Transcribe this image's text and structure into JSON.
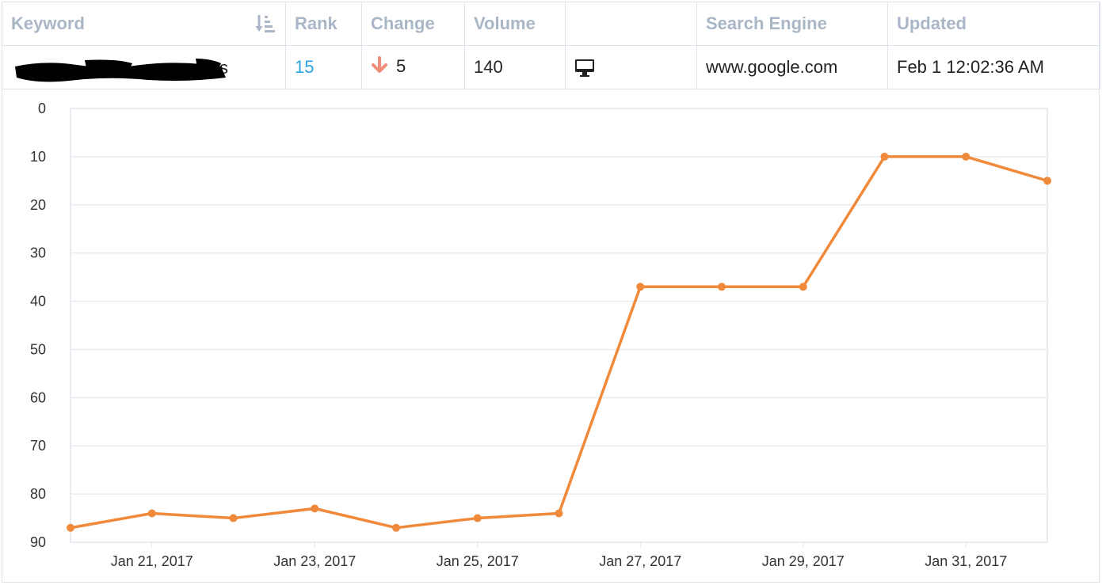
{
  "table": {
    "headers": {
      "keyword": "Keyword",
      "rank": "Rank",
      "change": "Change",
      "volume": "Volume",
      "device": "",
      "search_engine": "Search Engine",
      "updated": "Updated"
    },
    "row": {
      "keyword": "s",
      "rank": "15",
      "change": "5",
      "change_direction": "down",
      "volume": "140",
      "device_icon": "desktop-icon",
      "search_engine": "www.google.com",
      "updated": "Feb 1 12:02:36 AM"
    }
  },
  "colors": {
    "line": "#f0893a",
    "rank_link": "#2aa7e0",
    "change_down": "#f08c7a",
    "header_text": "#a9b6c6",
    "grid": "#e8ecf0"
  },
  "chart_data": {
    "type": "line",
    "title": "",
    "xlabel": "",
    "ylabel": "",
    "y_inverted": true,
    "ylim": [
      0,
      90
    ],
    "yticks": [
      "0",
      "10",
      "20",
      "30",
      "40",
      "50",
      "60",
      "70",
      "80",
      "90"
    ],
    "xticks": [
      "Jan 21, 2017",
      "Jan 23, 2017",
      "Jan 25, 2017",
      "Jan 27, 2017",
      "Jan 29, 2017",
      "Jan 31, 2017"
    ],
    "x": [
      "Jan 20, 2017",
      "Jan 21, 2017",
      "Jan 22, 2017",
      "Jan 23, 2017",
      "Jan 24, 2017",
      "Jan 25, 2017",
      "Jan 26, 2017",
      "Jan 27, 2017",
      "Jan 28, 2017",
      "Jan 29, 2017",
      "Jan 30, 2017",
      "Jan 31, 2017",
      "Feb 1, 2017"
    ],
    "series": [
      {
        "values": [
          87,
          84,
          85,
          83,
          87,
          85,
          84,
          37,
          37,
          37,
          10,
          10,
          15
        ]
      }
    ]
  }
}
